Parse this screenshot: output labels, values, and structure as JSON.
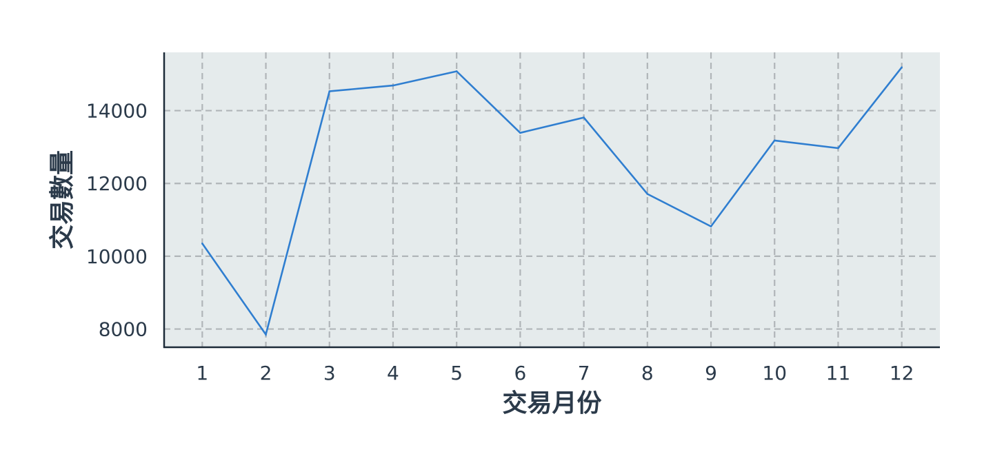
{
  "chart_data": {
    "type": "line",
    "title": "",
    "xlabel": "交易月份",
    "ylabel": "交易數量",
    "categories": [
      "1",
      "2",
      "3",
      "4",
      "5",
      "6",
      "7",
      "8",
      "9",
      "10",
      "11",
      "12"
    ],
    "x": [
      1,
      2,
      3,
      4,
      5,
      6,
      7,
      8,
      9,
      10,
      11,
      12
    ],
    "series": [
      {
        "values": [
          10350,
          7850,
          14530,
          14690,
          15080,
          13390,
          13810,
          11710,
          10820,
          13180,
          12970,
          15190
        ]
      }
    ],
    "yticks": [
      8000,
      10000,
      12000,
      14000
    ],
    "ytick_labels": [
      "8000",
      "10000",
      "12000",
      "14000"
    ],
    "ylim": [
      7500,
      15600
    ],
    "xlim": [
      0.4,
      12.6
    ],
    "grid": true,
    "grid_style": "dashed",
    "legend": "none",
    "colors": {
      "line": "#2f7ed0",
      "plot_background": "#e5ebec",
      "grid": "#b0b5b8",
      "axis": "#1c2a38",
      "text": "#2b3a4a"
    }
  }
}
